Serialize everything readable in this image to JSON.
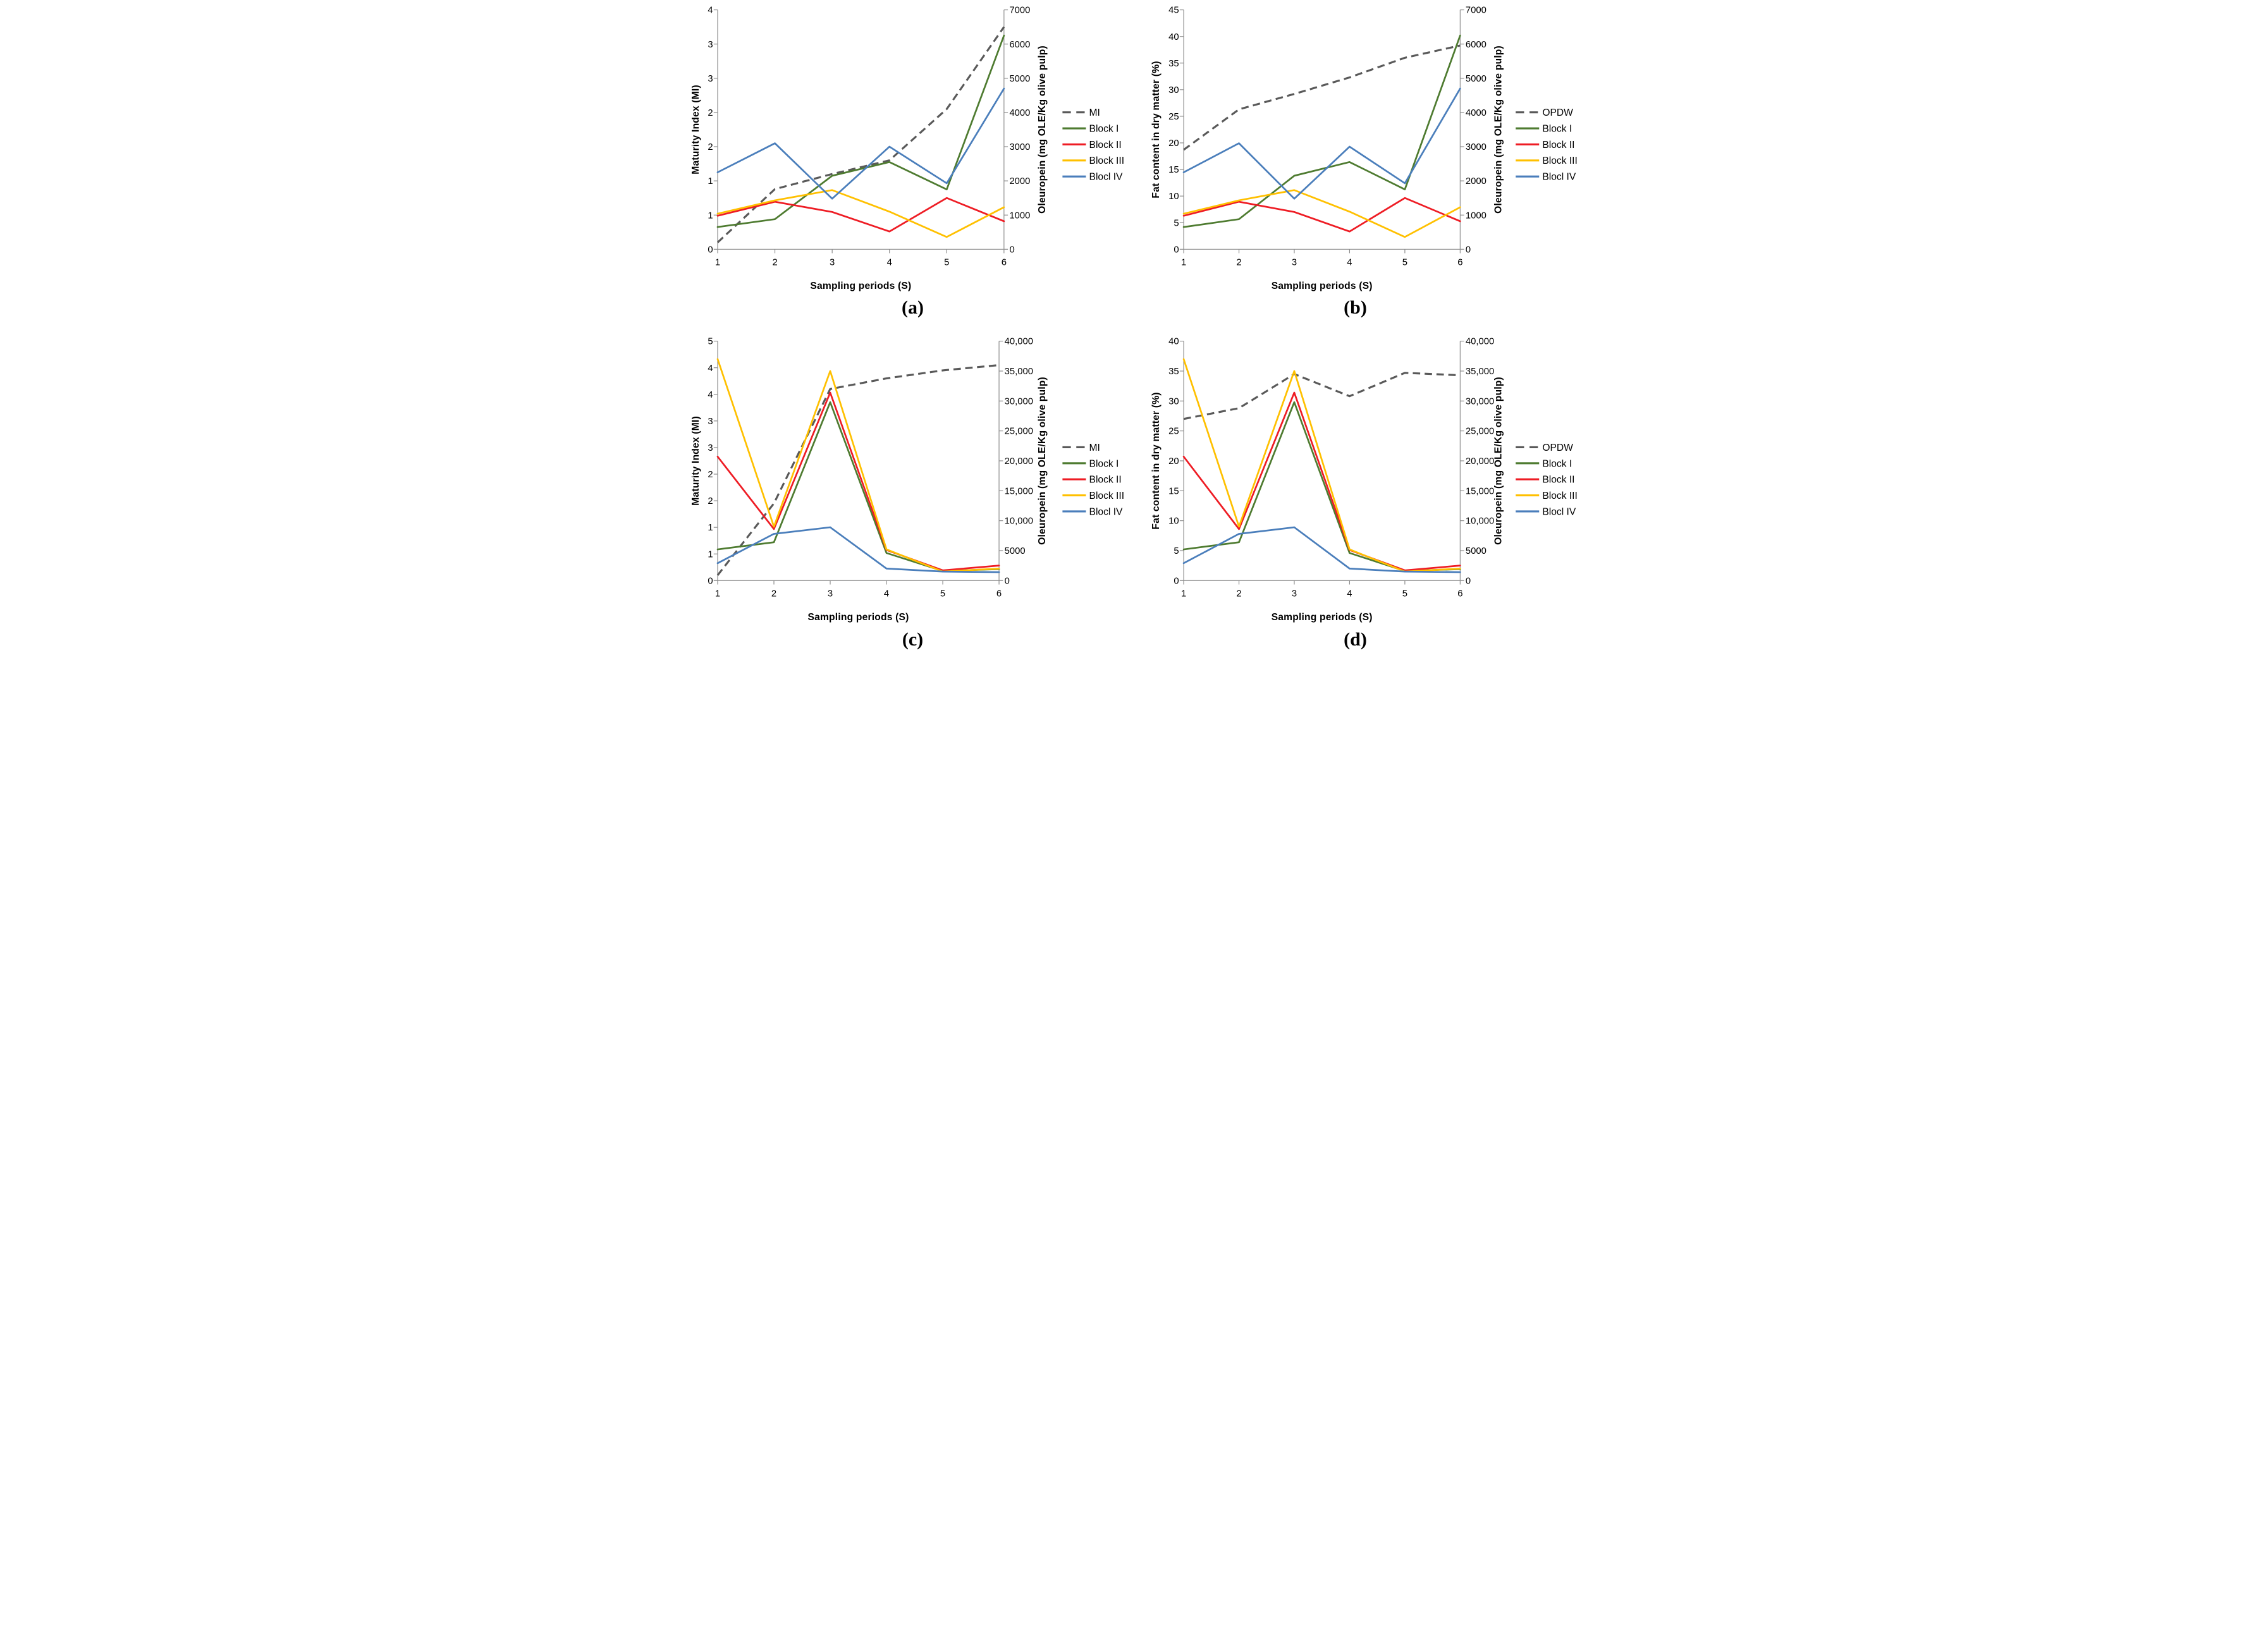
{
  "figure": {
    "description": "Four dual-axis line charts of Maturity Index / Fat content and Oleuropein over sampling periods"
  },
  "colors": {
    "dashed_series": "#595959",
    "block_1": "#4e7b30",
    "block_2": "#ee1c24",
    "block_3": "#ffc000",
    "block_4": "#4a7ebb",
    "axis_line": "#8c8c8c",
    "text": "#000000",
    "background": "#ffffff"
  },
  "chart_data": [
    {
      "id": "a",
      "type": "line",
      "caption": "(a)",
      "x_axis": {
        "title": "Sampling periods (S)",
        "tick_labels": [
          "1",
          "2",
          "3",
          "4",
          "5",
          "6"
        ]
      },
      "left_axis": {
        "title": "Maturity Index (MI)",
        "min": 0,
        "max": 3.5,
        "tick_labels_bottom_to_top": [
          "0",
          "1",
          "1",
          "2",
          "2",
          "3",
          "3",
          "4"
        ]
      },
      "right_axis": {
        "title": "Oleuropein (mg OLE/Kg olive pulp)",
        "min": 0,
        "max": 7000,
        "tick_labels_bottom_to_top": [
          "0",
          "1000",
          "2000",
          "3000",
          "4000",
          "5000",
          "6000",
          "7000"
        ]
      },
      "series": [
        {
          "name": "MI",
          "axis": "left",
          "style": "dashed",
          "color": "#595959",
          "values": [
            0.1,
            0.88,
            1.1,
            1.3,
            2.05,
            3.25
          ]
        },
        {
          "name": "Block I",
          "axis": "right",
          "style": "solid",
          "color": "#4e7b30",
          "values": [
            650,
            880,
            2150,
            2550,
            1750,
            6250
          ]
        },
        {
          "name": "Block II",
          "axis": "right",
          "style": "solid",
          "color": "#ee1c24",
          "values": [
            980,
            1390,
            1090,
            520,
            1500,
            820
          ]
        },
        {
          "name": "Block III",
          "axis": "right",
          "style": "solid",
          "color": "#ffc000",
          "values": [
            1040,
            1430,
            1730,
            1100,
            360,
            1230
          ]
        },
        {
          "name": "Blocl IV",
          "axis": "right",
          "style": "solid",
          "color": "#4a7ebb",
          "values": [
            2250,
            3100,
            1480,
            3000,
            1930,
            4700
          ]
        }
      ]
    },
    {
      "id": "b",
      "type": "line",
      "caption": "(b)",
      "x_axis": {
        "title": "Sampling periods (S)",
        "tick_labels": [
          "1",
          "2",
          "3",
          "4",
          "5",
          "6"
        ]
      },
      "left_axis": {
        "title": "Fat content in dry matter  (%)",
        "min": 0,
        "max": 45,
        "tick_labels_bottom_to_top": [
          "0",
          "5",
          "10",
          "15",
          "20",
          "25",
          "30",
          "35",
          "40",
          "45"
        ]
      },
      "right_axis": {
        "title": "Oleuropein (mg OLE/Kg olive pulp)",
        "min": 0,
        "max": 7000,
        "tick_labels_bottom_to_top": [
          "0",
          "1000",
          "2000",
          "3000",
          "4000",
          "5000",
          "6000",
          "7000"
        ]
      },
      "series": [
        {
          "name": "OPDW",
          "axis": "left",
          "style": "dashed",
          "color": "#595959",
          "values": [
            18.7,
            26.3,
            29.2,
            32.3,
            36.0,
            38.3
          ]
        },
        {
          "name": "Block I",
          "axis": "right",
          "style": "solid",
          "color": "#4e7b30",
          "values": [
            650,
            880,
            2150,
            2550,
            1750,
            6250
          ]
        },
        {
          "name": "Block II",
          "axis": "right",
          "style": "solid",
          "color": "#ee1c24",
          "values": [
            980,
            1390,
            1090,
            520,
            1500,
            820
          ]
        },
        {
          "name": "Block III",
          "axis": "right",
          "style": "solid",
          "color": "#ffc000",
          "values": [
            1040,
            1430,
            1730,
            1100,
            360,
            1230
          ]
        },
        {
          "name": "Blocl IV",
          "axis": "right",
          "style": "solid",
          "color": "#4a7ebb",
          "values": [
            2250,
            3100,
            1480,
            3000,
            1930,
            4700
          ]
        }
      ]
    },
    {
      "id": "c",
      "type": "line",
      "caption": "(c)",
      "x_axis": {
        "title": "Sampling periods (S)",
        "tick_labels": [
          "1",
          "2",
          "3",
          "4",
          "5",
          "6"
        ]
      },
      "left_axis": {
        "title": "Maturity Index (MI)",
        "min": 0,
        "max": 4.5,
        "tick_labels_bottom_to_top": [
          "0",
          "1",
          "1",
          "2",
          "2",
          "3",
          "3",
          "4",
          "4",
          "5"
        ]
      },
      "right_axis": {
        "title": "Oleuropein (mg OLE/Kg olive pulp)",
        "min": 0,
        "max": 40000,
        "tick_labels_bottom_to_top": [
          "0",
          "5000",
          "10,000",
          "15,000",
          "20,000",
          "25,000",
          "30,000",
          "35,000",
          "40,000"
        ]
      },
      "series": [
        {
          "name": "MI",
          "axis": "left",
          "style": "dashed",
          "color": "#595959",
          "values": [
            0.1,
            1.45,
            3.6,
            3.8,
            3.95,
            4.05
          ]
        },
        {
          "name": "Block I",
          "axis": "right",
          "style": "solid",
          "color": "#4e7b30",
          "values": [
            5200,
            6400,
            29800,
            4600,
            1600,
            1900
          ]
        },
        {
          "name": "Block II",
          "axis": "right",
          "style": "solid",
          "color": "#ee1c24",
          "values": [
            20700,
            8600,
            31400,
            5100,
            1700,
            2500
          ]
        },
        {
          "name": "Block III",
          "axis": "right",
          "style": "solid",
          "color": "#ffc000",
          "values": [
            37000,
            9000,
            35000,
            5200,
            1500,
            2000
          ]
        },
        {
          "name": "Blocl IV",
          "axis": "right",
          "style": "solid",
          "color": "#4a7ebb",
          "values": [
            2900,
            7800,
            8900,
            2000,
            1500,
            1400
          ]
        }
      ]
    },
    {
      "id": "d",
      "type": "line",
      "caption": "(d)",
      "x_axis": {
        "title": "Sampling periods (S)",
        "tick_labels": [
          "1",
          "2",
          "3",
          "4",
          "5",
          "6"
        ]
      },
      "left_axis": {
        "title": "Fat content in dry matter  (%)",
        "min": 0,
        "max": 40,
        "tick_labels_bottom_to_top": [
          "0",
          "5",
          "10",
          "15",
          "20",
          "25",
          "30",
          "35",
          "40"
        ]
      },
      "right_axis": {
        "title": "Oleuropein (mg OLE/Kg olive pulp)",
        "min": 0,
        "max": 40000,
        "tick_labels_bottom_to_top": [
          "0",
          "5000",
          "10,000",
          "15,000",
          "20,000",
          "25,000",
          "30,000",
          "35,000",
          "40,000"
        ]
      },
      "series": [
        {
          "name": "OPDW",
          "axis": "left",
          "style": "dashed",
          "color": "#595959",
          "values": [
            27.0,
            28.8,
            34.5,
            30.8,
            34.7,
            34.3
          ]
        },
        {
          "name": "Block I",
          "axis": "right",
          "style": "solid",
          "color": "#4e7b30",
          "values": [
            5200,
            6400,
            29800,
            4600,
            1600,
            1900
          ]
        },
        {
          "name": "Block II",
          "axis": "right",
          "style": "solid",
          "color": "#ee1c24",
          "values": [
            20700,
            8600,
            31400,
            5100,
            1700,
            2500
          ]
        },
        {
          "name": "Block III",
          "axis": "right",
          "style": "solid",
          "color": "#ffc000",
          "values": [
            37000,
            9000,
            35000,
            5200,
            1500,
            2000
          ]
        },
        {
          "name": "Blocl IV",
          "axis": "right",
          "style": "solid",
          "color": "#4a7ebb",
          "values": [
            2900,
            7800,
            8900,
            2000,
            1500,
            1400
          ]
        }
      ]
    }
  ]
}
